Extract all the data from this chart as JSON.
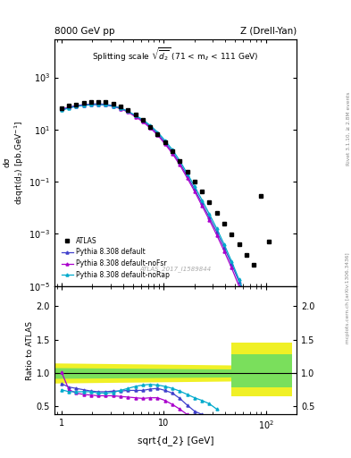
{
  "title_left": "8000 GeV pp",
  "title_right": "Z (Drell-Yan)",
  "plot_title": "Splitting scale $\\sqrt{\\overline{d_2}}$ (71 < m$_{ll}$ < 111 GeV)",
  "ylabel_main_top": "dσ",
  "ylabel_main_bot": "dsqrt(d$_2$) [pb,GeV$^{-1}$]",
  "ylabel_ratio": "Ratio to ATLAS",
  "xlabel": "sqrt{d_2} [GeV]",
  "watermark": "ATLAS_2017_I1589844",
  "atlas_x": [
    1.0,
    1.18,
    1.39,
    1.64,
    1.94,
    2.29,
    2.71,
    3.2,
    3.78,
    4.47,
    5.28,
    6.24,
    7.37,
    8.71,
    10.29,
    12.15,
    14.36,
    16.96,
    20.04,
    23.67,
    27.97,
    33.04,
    39.03,
    46.12,
    54.5,
    64.39,
    76.05,
    89.84,
    106.15
  ],
  "atlas_y": [
    68.0,
    82.0,
    93.0,
    102.0,
    112.0,
    118.0,
    112.0,
    97.0,
    76.0,
    55.0,
    37.0,
    23.0,
    13.0,
    6.8,
    3.2,
    1.5,
    0.6,
    0.25,
    0.1,
    0.043,
    0.017,
    0.0065,
    0.0024,
    0.00095,
    0.0004,
    0.00016,
    6.5e-05,
    0.028,
    0.0005
  ],
  "py_default_x": [
    1.0,
    1.18,
    1.39,
    1.64,
    1.94,
    2.29,
    2.71,
    3.2,
    3.78,
    4.47,
    5.28,
    6.24,
    7.37,
    8.71,
    10.29,
    12.15,
    14.36,
    16.96,
    20.04,
    23.67,
    27.97,
    33.04,
    39.03,
    46.12,
    54.5,
    64.39,
    76.05
  ],
  "py_default_y": [
    60.0,
    73.0,
    83.0,
    90.0,
    95.0,
    97.0,
    93.0,
    82.0,
    67.0,
    50.0,
    34.0,
    22.0,
    13.0,
    7.0,
    3.2,
    1.4,
    0.52,
    0.17,
    0.052,
    0.015,
    0.0043,
    0.0012,
    0.0003,
    7e-05,
    1.5e-05,
    3e-06,
    5e-07
  ],
  "py_nofsr_x": [
    1.0,
    1.18,
    1.39,
    1.64,
    1.94,
    2.29,
    2.71,
    3.2,
    3.78,
    4.47,
    5.28,
    6.24,
    7.37,
    8.71,
    10.29,
    12.15,
    14.36,
    16.96,
    20.04,
    23.67,
    27.97,
    33.04,
    39.03,
    46.12,
    54.5,
    64.39,
    76.05
  ],
  "py_nofsr_y": [
    60.0,
    70.0,
    79.0,
    86.0,
    90.0,
    92.0,
    88.0,
    77.0,
    63.0,
    47.0,
    31.0,
    20.0,
    11.5,
    6.2,
    2.8,
    1.2,
    0.44,
    0.14,
    0.043,
    0.012,
    0.0034,
    0.0009,
    0.00022,
    5e-05,
    1e-05,
    2e-06,
    3.5e-07
  ],
  "py_norap_x": [
    1.0,
    1.18,
    1.39,
    1.64,
    1.94,
    2.29,
    2.71,
    3.2,
    3.78,
    4.47,
    5.28,
    6.24,
    7.37,
    8.71,
    10.29,
    12.15,
    14.36,
    16.96,
    20.04,
    23.67,
    27.97,
    33.04,
    39.03,
    46.12,
    54.5,
    64.39,
    76.05
  ],
  "py_norap_y": [
    55.0,
    67.0,
    77.0,
    84.0,
    89.0,
    91.0,
    88.0,
    79.0,
    66.0,
    50.0,
    35.0,
    24.0,
    14.5,
    8.0,
    3.8,
    1.7,
    0.64,
    0.21,
    0.067,
    0.02,
    0.0058,
    0.0016,
    0.0004,
    9e-05,
    1.8e-05,
    3.5e-06,
    6e-07
  ],
  "ratio_default_x": [
    1.0,
    1.18,
    1.39,
    1.64,
    1.94,
    2.29,
    2.71,
    3.2,
    3.78,
    4.47,
    5.28,
    6.24,
    7.37,
    8.71,
    10.29,
    12.15,
    14.36,
    16.96,
    20.04,
    23.67,
    27.97
  ],
  "ratio_default_y": [
    0.84,
    0.79,
    0.77,
    0.75,
    0.73,
    0.72,
    0.72,
    0.73,
    0.73,
    0.74,
    0.74,
    0.74,
    0.76,
    0.77,
    0.74,
    0.7,
    0.62,
    0.52,
    0.43,
    0.38,
    0.34
  ],
  "ratio_nofsr_x": [
    1.0,
    1.18,
    1.39,
    1.64,
    1.94,
    2.29,
    2.71,
    3.2,
    3.78,
    4.47,
    5.28,
    6.24,
    7.37,
    8.71,
    10.29,
    12.15,
    14.36,
    16.96,
    20.04,
    23.67,
    27.97
  ],
  "ratio_nofsr_y": [
    1.01,
    0.75,
    0.7,
    0.68,
    0.67,
    0.66,
    0.66,
    0.66,
    0.65,
    0.64,
    0.63,
    0.62,
    0.63,
    0.63,
    0.59,
    0.53,
    0.46,
    0.38,
    0.3,
    0.27,
    0.25
  ],
  "ratio_norap_x": [
    1.0,
    1.18,
    1.39,
    1.64,
    1.94,
    2.29,
    2.71,
    3.2,
    3.78,
    4.47,
    5.28,
    6.24,
    7.37,
    8.71,
    10.29,
    12.15,
    14.36,
    16.96,
    20.04,
    23.67,
    27.97,
    33.04
  ],
  "ratio_norap_y": [
    0.75,
    0.72,
    0.72,
    0.72,
    0.72,
    0.7,
    0.7,
    0.71,
    0.74,
    0.77,
    0.8,
    0.82,
    0.83,
    0.82,
    0.8,
    0.77,
    0.73,
    0.68,
    0.63,
    0.59,
    0.54,
    0.46
  ],
  "color_default": "#4040cc",
  "color_nofsr": "#aa00cc",
  "color_norap": "#00aacc",
  "color_atlas": "black",
  "ylim_main": [
    1e-05,
    30000.0
  ],
  "xlim": [
    0.85,
    200
  ],
  "ylim_ratio": [
    0.38,
    2.3
  ],
  "ratio_yticks": [
    0.5,
    1.0,
    1.5,
    2.0
  ]
}
